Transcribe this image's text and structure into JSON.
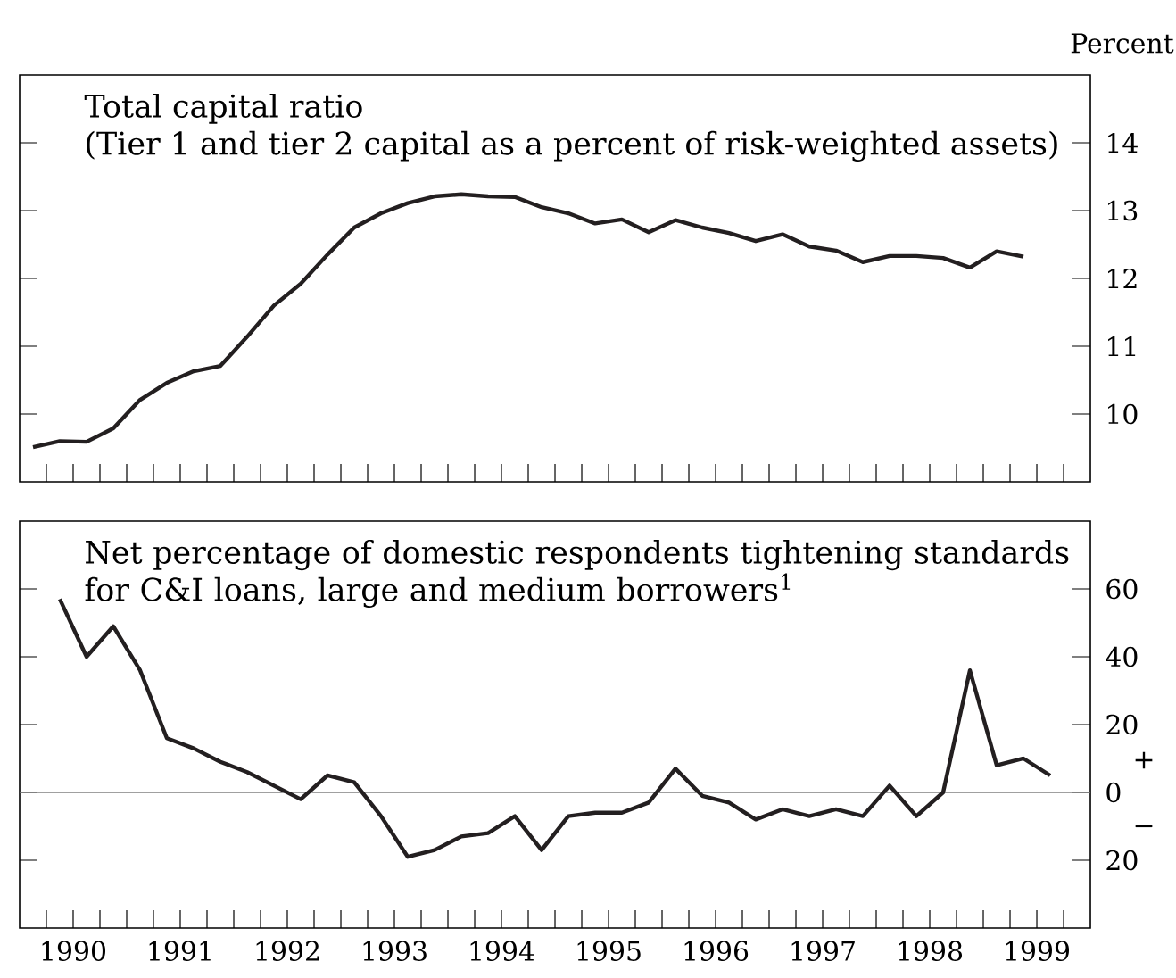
{
  "chart_data": [
    {
      "type": "line",
      "title": "Total capital ratio",
      "subtitle": "(Tier 1 and tier 2 capital as a percent of risk-weighted assets)",
      "ylabel": "Percent",
      "x": [
        1990.125,
        1990.375,
        1990.625,
        1990.875,
        1991.125,
        1991.375,
        1991.625,
        1991.875,
        1992.125,
        1992.375,
        1992.625,
        1992.875,
        1993.125,
        1993.375,
        1993.625,
        1993.875,
        1994.125,
        1994.375,
        1994.625,
        1994.875,
        1995.125,
        1995.375,
        1995.625,
        1995.875,
        1996.125,
        1996.375,
        1996.625,
        1996.875,
        1997.125,
        1997.375,
        1997.625,
        1997.875,
        1998.125,
        1998.375,
        1998.625,
        1998.875,
        1999.125,
        1999.375
      ],
      "series": [
        {
          "color": "#231f20",
          "values": [
            9.51,
            9.6,
            9.59,
            9.79,
            10.21,
            10.46,
            10.63,
            10.71,
            11.14,
            11.6,
            11.92,
            12.35,
            12.75,
            12.96,
            13.11,
            13.21,
            13.24,
            13.21,
            13.2,
            13.05,
            12.96,
            12.81,
            12.87,
            12.68,
            12.86,
            12.75,
            12.67,
            12.55,
            12.65,
            12.47,
            12.41,
            12.24,
            12.33,
            12.33,
            12.3,
            12.16,
            12.4,
            12.32
          ]
        }
      ],
      "xlim": [
        1990,
        2000
      ],
      "ylim": [
        9,
        15
      ],
      "yticks": [
        10,
        11,
        12,
        13,
        14
      ],
      "xticks": [
        {
          "value": 1990.25,
          "label": null
        },
        {
          "value": 1990.5,
          "label": null
        },
        {
          "value": 1990.75,
          "label": null
        },
        {
          "value": 1991,
          "label": null
        },
        {
          "value": 1991.25,
          "label": null
        },
        {
          "value": 1991.5,
          "label": null
        },
        {
          "value": 1991.75,
          "label": null
        },
        {
          "value": 1992,
          "label": null
        },
        {
          "value": 1992.25,
          "label": null
        },
        {
          "value": 1992.5,
          "label": null
        },
        {
          "value": 1992.75,
          "label": null
        },
        {
          "value": 1993,
          "label": null
        },
        {
          "value": 1993.25,
          "label": null
        },
        {
          "value": 1993.5,
          "label": null
        },
        {
          "value": 1993.75,
          "label": null
        },
        {
          "value": 1994,
          "label": null
        },
        {
          "value": 1994.25,
          "label": null
        },
        {
          "value": 1994.5,
          "label": null
        },
        {
          "value": 1994.75,
          "label": null
        },
        {
          "value": 1995,
          "label": null
        },
        {
          "value": 1995.25,
          "label": null
        },
        {
          "value": 1995.5,
          "label": null
        },
        {
          "value": 1995.75,
          "label": null
        },
        {
          "value": 1996,
          "label": null
        },
        {
          "value": 1996.25,
          "label": null
        },
        {
          "value": 1996.5,
          "label": null
        },
        {
          "value": 1996.75,
          "label": null
        },
        {
          "value": 1997,
          "label": null
        },
        {
          "value": 1997.25,
          "label": null
        },
        {
          "value": 1997.5,
          "label": null
        },
        {
          "value": 1997.75,
          "label": null
        },
        {
          "value": 1998,
          "label": null
        },
        {
          "value": 1998.25,
          "label": null
        },
        {
          "value": 1998.5,
          "label": null
        },
        {
          "value": 1998.75,
          "label": null
        },
        {
          "value": 1999,
          "label": null
        },
        {
          "value": 1999.25,
          "label": null
        },
        {
          "value": 1999.5,
          "label": null
        },
        {
          "value": 1999.75,
          "label": null
        }
      ],
      "tick_labels": "y",
      "marker": "none",
      "line_style": "solid"
    },
    {
      "type": "line",
      "title": "Net percentage of domestic respondents tightening standards for C&I loans, large and medium borrowers$^{1}$",
      "x": [
        1990.375,
        1990.625,
        1990.875,
        1991.125,
        1991.375,
        1991.625,
        1991.875,
        1992.125,
        1992.375,
        1992.625,
        1992.875,
        1993.125,
        1993.375,
        1993.625,
        1993.875,
        1994.125,
        1994.375,
        1994.625,
        1994.875,
        1995.125,
        1995.375,
        1995.625,
        1995.875,
        1996.125,
        1996.375,
        1996.625,
        1996.875,
        1997.125,
        1997.375,
        1997.625,
        1997.875,
        1998.125,
        1998.375,
        1998.625,
        1998.875,
        1999.125,
        1999.375,
        1999.625
      ],
      "series": [
        {
          "color": "#231f20",
          "values": [
            57,
            40,
            49,
            36,
            16,
            13,
            9,
            6,
            2,
            -2,
            5,
            3,
            -7,
            -19,
            -17,
            -13,
            -12,
            -7,
            -17,
            -7,
            -6,
            -6,
            -3,
            7,
            -1,
            -3,
            -8,
            -5,
            -7,
            -5,
            -7,
            2,
            -7,
            0,
            36,
            8,
            10,
            5
          ]
        }
      ],
      "xlim": [
        1990,
        2000
      ],
      "ylim": [
        -40,
        80
      ],
      "yticks": [
        {
          "value": -20,
          "label": "20"
        },
        {
          "value": 0,
          "label": "0"
        },
        20,
        40,
        60
      ],
      "xticks": [
        {
          "value": 1990.25,
          "label": null
        },
        {
          "value": 1990.5,
          "label": "1990"
        },
        {
          "value": 1990.75,
          "label": null
        },
        {
          "value": 1991,
          "label": null
        },
        {
          "value": 1991.25,
          "label": null
        },
        {
          "value": 1991.5,
          "label": "1991"
        },
        {
          "value": 1991.75,
          "label": null
        },
        {
          "value": 1992,
          "label": null
        },
        {
          "value": 1992.25,
          "label": null
        },
        {
          "value": 1992.5,
          "label": "1992"
        },
        {
          "value": 1992.75,
          "label": null
        },
        {
          "value": 1993,
          "label": null
        },
        {
          "value": 1993.25,
          "label": null
        },
        {
          "value": 1993.5,
          "label": "1993"
        },
        {
          "value": 1993.75,
          "label": null
        },
        {
          "value": 1994,
          "label": null
        },
        {
          "value": 1994.25,
          "label": null
        },
        {
          "value": 1994.5,
          "label": "1994"
        },
        {
          "value": 1994.75,
          "label": null
        },
        {
          "value": 1995,
          "label": null
        },
        {
          "value": 1995.25,
          "label": null
        },
        {
          "value": 1995.5,
          "label": "1995"
        },
        {
          "value": 1995.75,
          "label": null
        },
        {
          "value": 1996,
          "label": null
        },
        {
          "value": 1996.25,
          "label": null
        },
        {
          "value": 1996.5,
          "label": "1996"
        },
        {
          "value": 1996.75,
          "label": null
        },
        {
          "value": 1997,
          "label": null
        },
        {
          "value": 1997.25,
          "label": null
        },
        {
          "value": 1997.5,
          "label": "1997"
        },
        {
          "value": 1997.75,
          "label": null
        },
        {
          "value": 1998,
          "label": null
        },
        {
          "value": 1998.25,
          "label": null
        },
        {
          "value": 1998.5,
          "label": "1998"
        },
        {
          "value": 1998.75,
          "label": null
        },
        {
          "value": 1999,
          "label": null
        },
        {
          "value": 1999.25,
          "label": null
        },
        {
          "value": 1999.5,
          "label": "1999"
        },
        {
          "value": 1999.75,
          "label": null
        }
      ],
      "ref_lines": [
        {
          "axis": "y",
          "value": 0,
          "color": "#808080"
        }
      ],
      "annotations": [
        "+",
        "−"
      ],
      "marker": "none",
      "line_style": "solid"
    }
  ]
}
